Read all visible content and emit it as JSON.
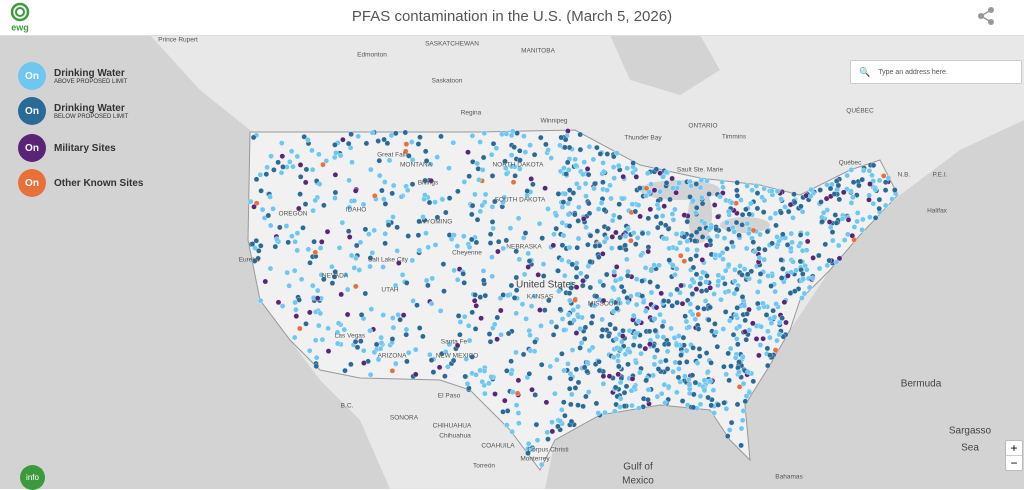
{
  "header": {
    "logo": "ewg",
    "title": "PFAS contamination in the U.S. (March 5, 2026)"
  },
  "legend": [
    {
      "toggle": "On",
      "label": "Drinking Water",
      "sublabel": "ABOVE PROPOSED LIMIT",
      "color": "#6ec6f1"
    },
    {
      "toggle": "On",
      "label": "Drinking Water",
      "sublabel": "BELOW PROPOSED LIMIT",
      "color": "#2b6a96"
    },
    {
      "toggle": "On",
      "label": "Military Sites",
      "color": "#5a2576"
    },
    {
      "toggle": "On",
      "label": "Other Known Sites",
      "color": "#e8703a"
    }
  ],
  "search": {
    "placeholder": "Type an address here."
  },
  "zoom": {
    "in": "+",
    "out": "−"
  },
  "info": "info",
  "map_labels": [
    "Prince Rupert",
    "SASKATCHEWAN",
    "MANITOBA",
    "Edmonton",
    "Saskatoon",
    "Regina",
    "Winnipeg",
    "ONTARIO",
    "Thunder Bay",
    "Timmins",
    "QUÉBEC",
    "Québec",
    "Great Falls",
    "MONTANA",
    "Billings",
    "NORTH DAKOTA",
    "SOUTH DAKOTA",
    "WYOMING",
    "IDAHO",
    "OREGON",
    "Eureka",
    "NEVADA",
    "Salt Lake City",
    "UTAH",
    "Cheyenne",
    "NEBRASKA",
    "United States",
    "KANSAS",
    "MISSOURI",
    "Las Vegas",
    "Santa Fe",
    "NEW MEXICO",
    "ARIZONA",
    "SONORA",
    "CHIHUAHUA",
    "Chihuahua",
    "COAHUILA",
    "Monterrey",
    "Torreón",
    "Corpus Christi",
    "Gulf of",
    "Mexico",
    "Bermuda",
    "Sargasso",
    "Sea",
    "Bahamas",
    "Halifax",
    "Sault Ste. Marie",
    "B.C.",
    "N.B.",
    "P.E.I.",
    "El Paso"
  ]
}
